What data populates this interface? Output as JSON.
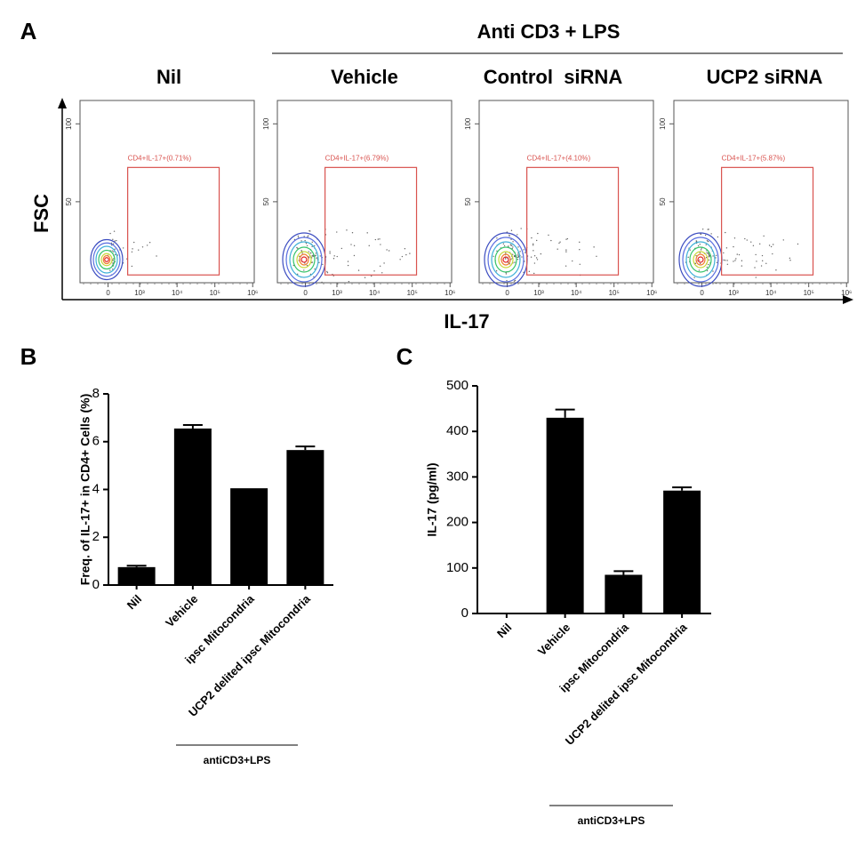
{
  "chart_data": [
    {
      "type": "flow",
      "panel": "A",
      "header": "Anti CD3 + LPS",
      "xlabel": "IL-17",
      "ylabel": "FSC",
      "xscale": "biexponential",
      "xlim": [
        -800,
        1100000
      ],
      "ylim": [
        -2,
        115
      ],
      "xticks": [
        0,
        {
          "value": 1000,
          "label": "10³"
        },
        {
          "value": 10000,
          "label": "10⁴"
        },
        {
          "value": 100000,
          "label": "10⁵"
        },
        {
          "value": 1000000,
          "label": "10⁶"
        }
      ],
      "yticks": [
        50,
        100
      ],
      "gate_color": "#d9534f",
      "samples": [
        {
          "name": "Nil",
          "gate_label": "CD4+IL-17+(0.71%)",
          "gate_x": [
            450,
            130000
          ],
          "gate_y": [
            3,
            72
          ]
        },
        {
          "name": "Vehicle",
          "gate_label": "CD4+IL-17+(6.79%)",
          "gate_x": [
            450,
            130000
          ],
          "gate_y": [
            3,
            72
          ]
        },
        {
          "name": "Control  siRNA",
          "gate_label": "CD4+IL-17+(4.10%)",
          "gate_x": [
            450,
            130000
          ],
          "gate_y": [
            3,
            72
          ]
        },
        {
          "name": "UCP2 siRNA",
          "gate_label": "CD4+IL-17+(5.87%)",
          "gate_x": [
            450,
            130000
          ],
          "gate_y": [
            3,
            72
          ]
        }
      ]
    },
    {
      "type": "bar",
      "panel": "B",
      "ylabel": "Freq. of IL-17+ in CD4+ Cells (%)",
      "categories": [
        "Nil",
        "Vehicle",
        "ipsc Mitocondria",
        "UCP2 delited ipsc Mitocondria"
      ],
      "values": [
        0.75,
        6.55,
        4.05,
        5.65
      ],
      "errors": [
        0.06,
        0.15,
        0,
        0.15
      ],
      "color": "#000000",
      "ylim": [
        0,
        8
      ],
      "yticks": [
        0,
        2,
        4,
        6,
        8
      ],
      "group_label": "antiCD3+LPS"
    },
    {
      "type": "bar",
      "panel": "C",
      "ylabel": "IL-17 (pg/ml)",
      "categories": [
        "Nil",
        "Vehicle",
        "ipsc Mitocondria",
        "UCP2 delited ipsc Mitocondria"
      ],
      "values": [
        0,
        430,
        85,
        270
      ],
      "errors": [
        0,
        18,
        8,
        7
      ],
      "color": "#000000",
      "ylim": [
        0,
        500
      ],
      "yticks": [
        0,
        100,
        200,
        300,
        400,
        500
      ],
      "group_label": "antiCD3+LPS"
    }
  ]
}
